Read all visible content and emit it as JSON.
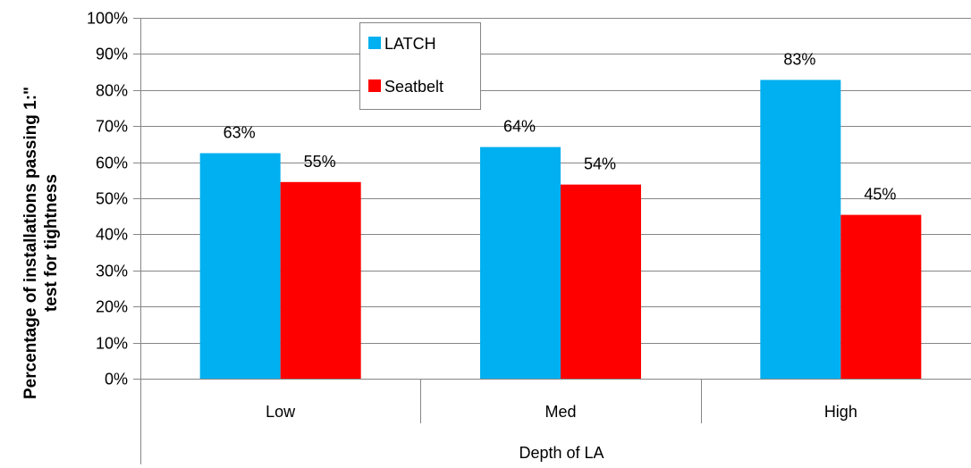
{
  "chart_data": {
    "type": "bar",
    "categories": [
      "Low",
      "Med",
      "High"
    ],
    "series": [
      {
        "name": "LATCH",
        "values": [
          0.625,
          0.642,
          0.828
        ],
        "labels": [
          "63%",
          "64%",
          "83%"
        ],
        "color": "#00b0f0"
      },
      {
        "name": "Seatbelt",
        "values": [
          0.545,
          0.538,
          0.454
        ],
        "labels": [
          "55%",
          "54%",
          "45%"
        ],
        "color": "#ff0000"
      }
    ],
    "ylabel_lines": [
      "Percentage of installations passing 1:\"",
      "test for tightness"
    ],
    "xlabel": "Depth of LA",
    "ylim": [
      0,
      1
    ],
    "yticks": [
      0,
      0.1,
      0.2,
      0.3,
      0.4,
      0.5,
      0.6,
      0.7,
      0.8,
      0.9,
      1.0
    ],
    "ytick_labels": [
      "0%",
      "10%",
      "20%",
      "30%",
      "40%",
      "50%",
      "60%",
      "70%",
      "80%",
      "90%",
      "100%"
    ],
    "grid": true,
    "legend_position": "top-center"
  }
}
